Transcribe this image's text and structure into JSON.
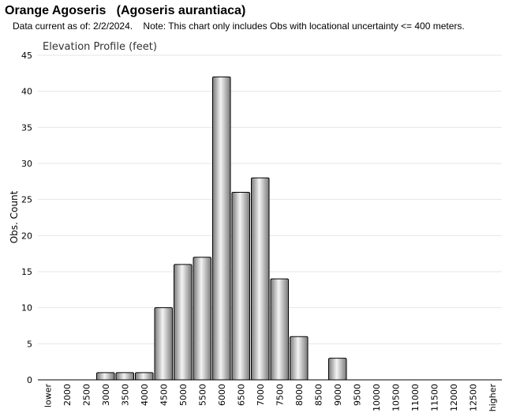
{
  "header": {
    "title": "Orange Agoseris   (Agoseris aurantiaca)",
    "subtitle": "Data current as of: 2/2/2024.    Note: This chart only includes Obs with locational uncertainty <= 400 meters."
  },
  "colors": {
    "bar_fill_light": "#f4f4f4",
    "bar_fill_dark": "#7a7a7a",
    "bar_stroke": "#000000",
    "grid": "#e6e6e6"
  },
  "chart_data": {
    "type": "bar",
    "title": "Elevation Profile (feet)",
    "xlabel": "",
    "ylabel": "Obs. Count",
    "ylim": [
      0,
      45
    ],
    "yticks": [
      0,
      5,
      10,
      15,
      20,
      25,
      30,
      35,
      40,
      45
    ],
    "grid": true,
    "legend": "none",
    "categories": [
      "lower",
      "2000",
      "2500",
      "3000",
      "3500",
      "4000",
      "4500",
      "5000",
      "5500",
      "6000",
      "6500",
      "7000",
      "7500",
      "8000",
      "8500",
      "9000",
      "9500",
      "10000",
      "10500",
      "11000",
      "11500",
      "12000",
      "12500",
      "higher"
    ],
    "values": [
      0,
      0,
      0,
      1,
      1,
      1,
      10,
      16,
      17,
      42,
      26,
      28,
      14,
      6,
      0,
      3,
      0,
      0,
      0,
      0,
      0,
      0,
      0,
      0
    ]
  }
}
